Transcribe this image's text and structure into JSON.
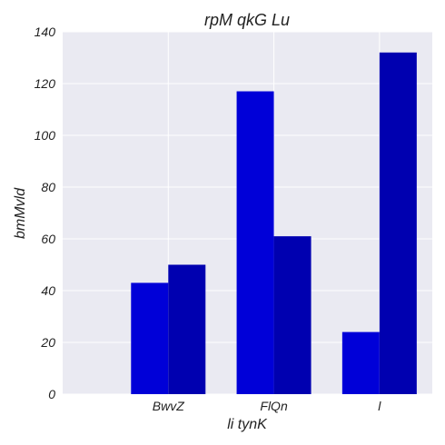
{
  "chart_data": {
    "type": "bar",
    "title": "rpM qkG Lu",
    "xlabel": "li tynK",
    "ylabel": "bmMvld",
    "categories": [
      "BwvZ",
      "FlQn",
      "l"
    ],
    "series": [
      {
        "values": [
          43,
          117,
          24
        ],
        "color": "#0000d8"
      },
      {
        "values": [
          50,
          61,
          132
        ],
        "color": "#0000b0"
      }
    ],
    "ylim": [
      0,
      140
    ],
    "yticks": [
      0,
      20,
      40,
      60,
      80,
      100,
      120,
      140
    ],
    "grid": true,
    "plot_background": "#eaeaf2",
    "grid_color": "#ffffff"
  }
}
